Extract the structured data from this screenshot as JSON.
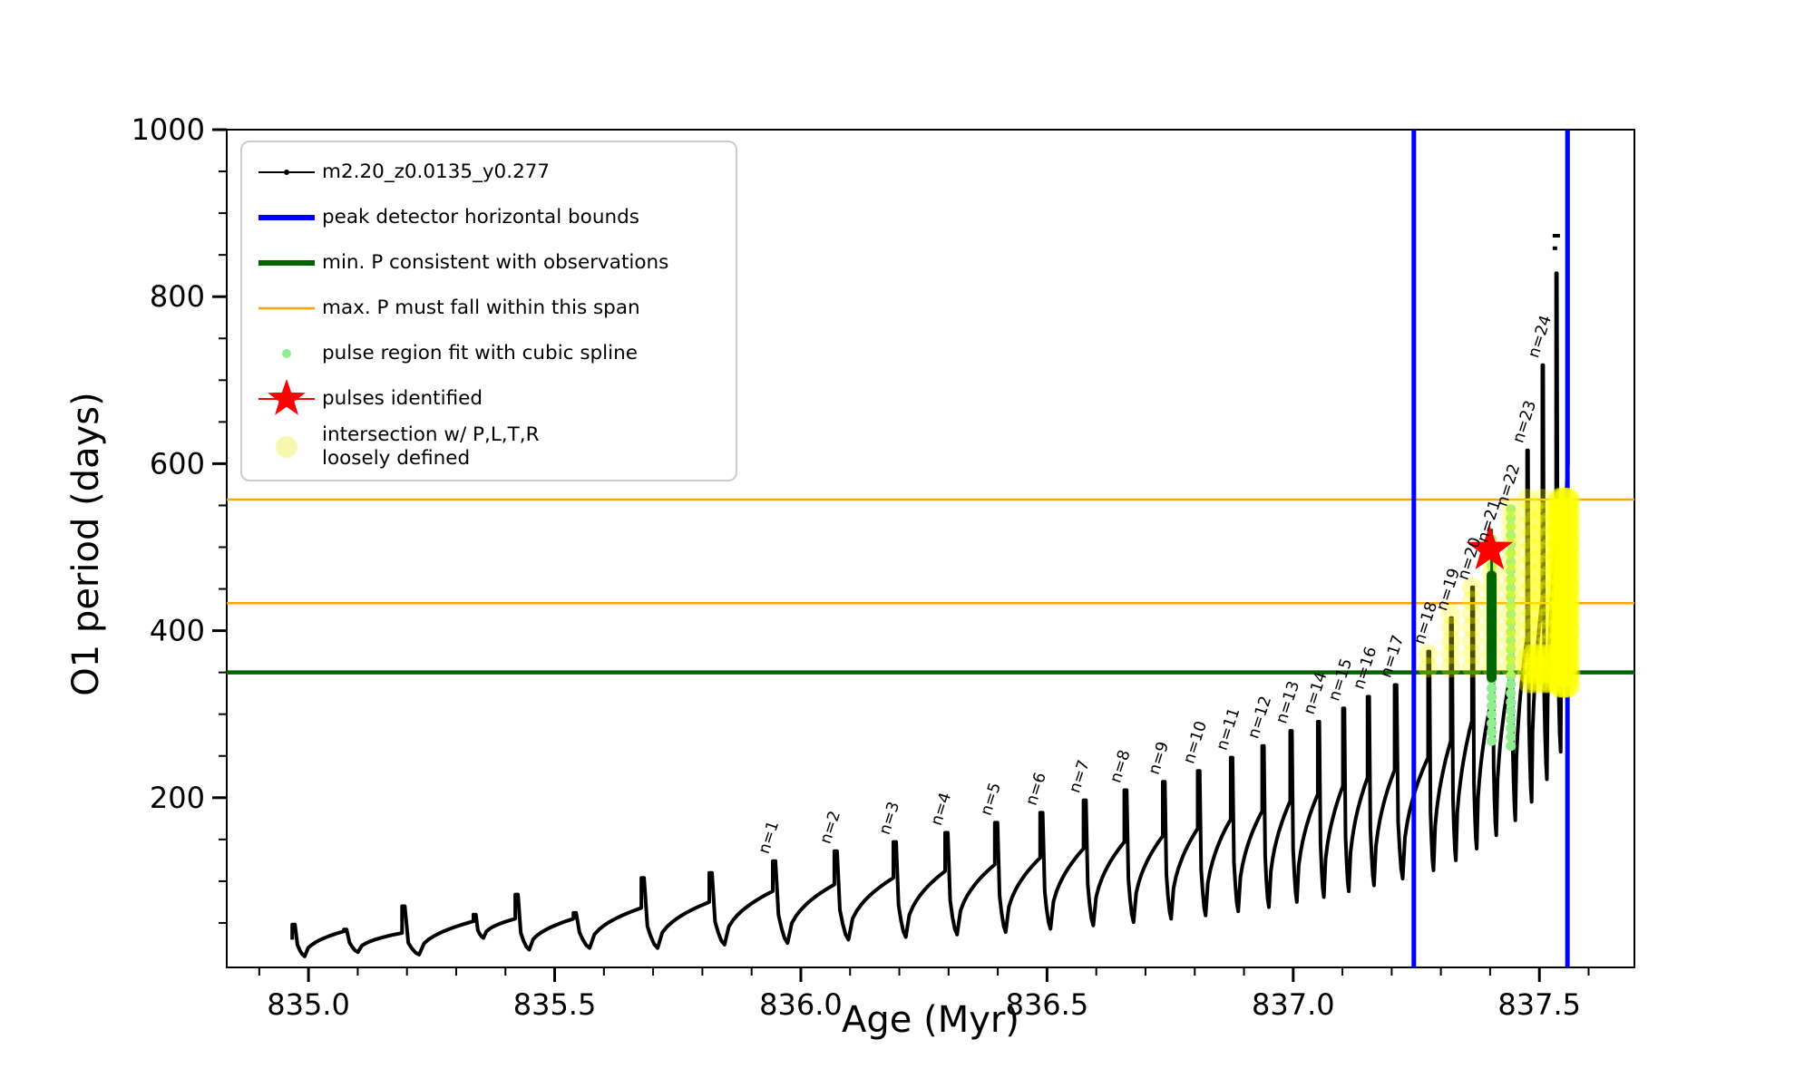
{
  "figure": {
    "background": "#ffffff"
  },
  "colors": {
    "series": "#000000",
    "peak_bounds": "#0000ff",
    "min_p": "#006400",
    "max_p_span": "#ffa500",
    "spline_dots": "#90ee90",
    "pulse_star": "#ff0000",
    "intersection": "#ffff00",
    "legend_border": "#cccccc",
    "axis": "#000000"
  },
  "axes": {
    "xlabel": "Age (Myr)",
    "ylabel": "O1 period (days)",
    "xlim": [
      834.834,
      837.693
    ],
    "ylim": [
      0,
      1001
    ],
    "x_major_ticks": [
      835.0,
      835.5,
      836.0,
      836.5,
      837.0,
      837.5
    ],
    "x_major_tick_labels": [
      "835.0",
      "835.5",
      "836.0",
      "836.5",
      "837.0",
      "837.5"
    ],
    "x_minor_step": 0.1,
    "y_major_ticks": [
      200,
      400,
      600,
      800,
      1000
    ],
    "y_major_tick_labels": [
      "200",
      "400",
      "600",
      "800",
      "1000"
    ],
    "y_minor_step": 50,
    "grid": false
  },
  "legend": {
    "position": "upper-left",
    "items": [
      {
        "label": "m2.20_z0.0135_y0.277",
        "marker": "line-dot",
        "color": "#000000"
      },
      {
        "label": "peak detector horizontal bounds",
        "marker": "thick-line",
        "color": "#0000ff"
      },
      {
        "label": "min. P consistent with observations",
        "marker": "thick-line",
        "color": "#006400"
      },
      {
        "label": "max. P must fall within this span",
        "marker": "line",
        "color": "#ffa500"
      },
      {
        "label": "pulse region fit with cubic spline",
        "marker": "small-dot",
        "color": "#90ee90"
      },
      {
        "label": "pulses identified",
        "marker": "star",
        "color": "#ff0000"
      },
      {
        "label": "intersection w/ P,L,T,R\nloosely defined",
        "marker": "big-dot",
        "color": "#f7f7b0"
      }
    ]
  },
  "chart_data": {
    "type": "line",
    "title": "",
    "xlabel": "Age (Myr)",
    "ylabel": "O1 period (days)",
    "series_name": "m2.20_z0.0135_y0.277",
    "xlim": [
      834.834,
      837.693
    ],
    "ylim": [
      0,
      1001
    ],
    "cycles": [
      {
        "age": 834.967,
        "peak": 48,
        "dip": 10,
        "base": 40,
        "label": ""
      },
      {
        "age": 835.072,
        "peak": 42,
        "dip": 15,
        "base": 38,
        "label": ""
      },
      {
        "age": 835.19,
        "peak": 70,
        "dip": 12,
        "base": 52,
        "label": ""
      },
      {
        "age": 835.335,
        "peak": 60,
        "dip": 32,
        "base": 55,
        "label": ""
      },
      {
        "age": 835.42,
        "peak": 84,
        "dip": 18,
        "base": 55,
        "label": ""
      },
      {
        "age": 835.538,
        "peak": 62,
        "dip": 20,
        "base": 68,
        "label": ""
      },
      {
        "age": 835.676,
        "peak": 104,
        "dip": 20,
        "base": 75,
        "label": ""
      },
      {
        "age": 835.814,
        "peak": 110,
        "dip": 24,
        "base": 88,
        "label": ""
      },
      {
        "age": 835.943,
        "peak": 124,
        "dip": 26,
        "base": 96,
        "label": "n=1"
      },
      {
        "age": 836.068,
        "peak": 136,
        "dip": 30,
        "base": 104,
        "label": "n=2"
      },
      {
        "age": 836.188,
        "peak": 147,
        "dip": 33,
        "base": 112,
        "label": "n=3"
      },
      {
        "age": 836.293,
        "peak": 158,
        "dip": 36,
        "base": 120,
        "label": "n=4"
      },
      {
        "age": 836.394,
        "peak": 170,
        "dip": 39,
        "base": 128,
        "label": "n=5"
      },
      {
        "age": 836.486,
        "peak": 182,
        "dip": 43,
        "base": 139,
        "label": "n=6"
      },
      {
        "age": 836.574,
        "peak": 197,
        "dip": 47,
        "base": 147,
        "label": "n=7"
      },
      {
        "age": 836.657,
        "peak": 209,
        "dip": 51,
        "base": 154,
        "label": "n=8"
      },
      {
        "age": 836.735,
        "peak": 219,
        "dip": 55,
        "base": 163,
        "label": "n=9"
      },
      {
        "age": 836.806,
        "peak": 232,
        "dip": 59,
        "base": 174,
        "label": "n=10"
      },
      {
        "age": 836.873,
        "peak": 248,
        "dip": 64,
        "base": 184,
        "label": "n=11"
      },
      {
        "age": 836.937,
        "peak": 262,
        "dip": 69,
        "base": 196,
        "label": "n=12"
      },
      {
        "age": 836.994,
        "peak": 280,
        "dip": 75,
        "base": 204,
        "label": "n=13"
      },
      {
        "age": 837.05,
        "peak": 291,
        "dip": 81,
        "base": 214,
        "label": "n=14"
      },
      {
        "age": 837.101,
        "peak": 307,
        "dip": 88,
        "base": 224,
        "label": "n=15"
      },
      {
        "age": 837.151,
        "peak": 321,
        "dip": 95,
        "base": 233,
        "label": "n=16"
      },
      {
        "age": 837.206,
        "peak": 335,
        "dip": 103,
        "base": 248,
        "label": "n=17"
      },
      {
        "age": 837.274,
        "peak": 375,
        "dip": 113,
        "base": 268,
        "label": "n=18"
      },
      {
        "age": 837.32,
        "peak": 415,
        "dip": 125,
        "base": 292,
        "label": "n=19"
      },
      {
        "age": 837.363,
        "peak": 452,
        "dip": 139,
        "base": 318,
        "label": "n=20"
      },
      {
        "age": 837.403,
        "peak": 497,
        "dip": 155,
        "base": 350,
        "label": "n=21"
      },
      {
        "age": 837.442,
        "peak": 540,
        "dip": 173,
        "base": 392,
        "label": "n=22"
      },
      {
        "age": 837.475,
        "peak": 616,
        "dip": 195,
        "base": 440,
        "label": "n=23"
      },
      {
        "age": 837.506,
        "peak": 718,
        "dip": 222,
        "base": 510,
        "label": "n=24"
      },
      {
        "age": 837.534,
        "peak": 828,
        "dip": 255,
        "base": 600,
        "label": ""
      },
      {
        "age": 837.558,
        "peak": 1001,
        "dip": 0,
        "base": 0,
        "label": ""
      }
    ],
    "bracket_mark": {
      "age": 837.527,
      "dashes_v": [
        873,
        858
      ]
    },
    "peak_detector_bounds_ages": [
      837.245,
      837.557
    ],
    "orange_span_periods": [
      557,
      433
    ],
    "min_p_period": 350,
    "pulse_star": {
      "age": 837.399,
      "period": 497
    },
    "green_bar": {
      "age": 837.403,
      "from": 344,
      "to": 466,
      "thin_to": 522
    },
    "spline_columns": [
      {
        "age": 837.403,
        "from": 268,
        "to": 510
      },
      {
        "age": 837.442,
        "from": 262,
        "to": 552
      }
    ],
    "yellow_columns": [
      {
        "age": 837.274,
        "from": 356,
        "to": 385
      },
      {
        "age": 837.32,
        "from": 356,
        "to": 425
      },
      {
        "age": 837.363,
        "from": 356,
        "to": 462
      },
      {
        "age": 837.403,
        "from": 356,
        "to": 505
      },
      {
        "age": 837.442,
        "from": 356,
        "to": 548
      },
      {
        "age": 837.475,
        "from": 350,
        "to": 558
      },
      {
        "age": 837.487,
        "from": 340,
        "to": 555
      },
      {
        "age": 837.506,
        "from": 350,
        "to": 558
      },
      {
        "age": 837.517,
        "from": 338,
        "to": 555
      },
      {
        "age": 837.534,
        "from": 338,
        "to": 558
      }
    ],
    "yellow_mass": {
      "age_from": 837.542,
      "age_to": 837.562,
      "age_step": 0.004,
      "v_from": 335,
      "v_to": 558,
      "v_step": 13
    },
    "yellow_low_cluster": {
      "age_from": 837.478,
      "age_to": 837.53,
      "age_step": 0.009,
      "v_from": 338,
      "v_to": 372,
      "v_step": 11
    }
  }
}
